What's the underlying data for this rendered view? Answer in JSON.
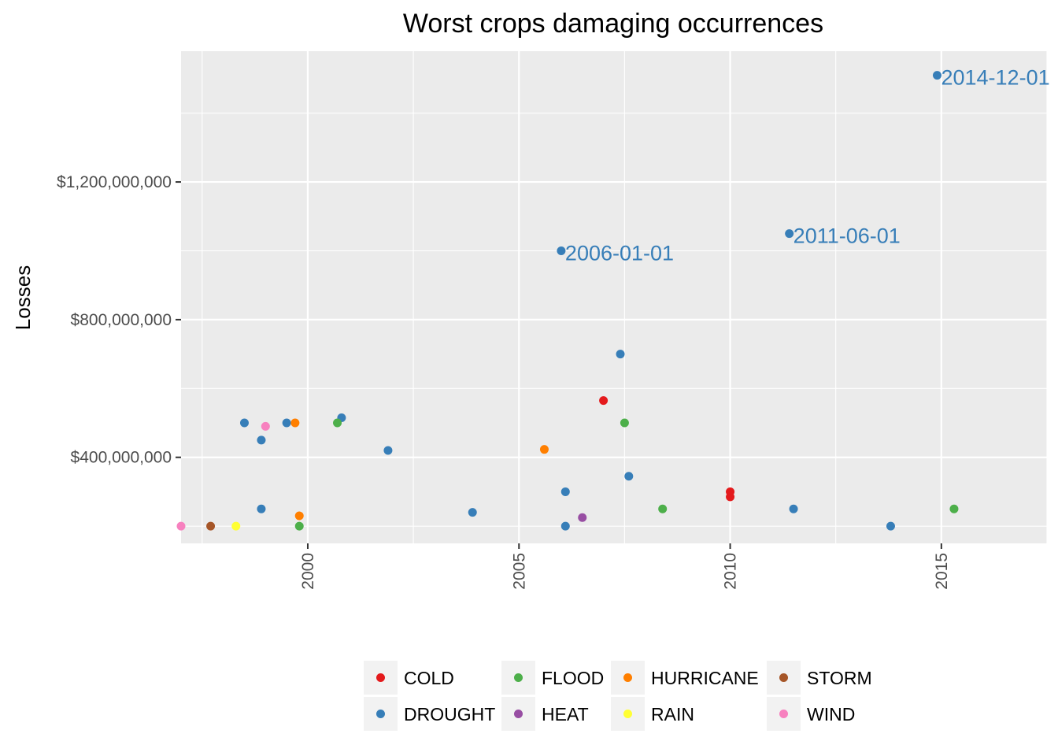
{
  "chart_data": {
    "type": "scatter",
    "title": "Worst crops damaging occurrences",
    "xlabel": "",
    "ylabel": "Losses",
    "xlim": [
      1997.0,
      2017.5
    ],
    "ylim": [
      150000000,
      1580000000
    ],
    "x_ticks": [
      2000,
      2005,
      2010,
      2015
    ],
    "x_tick_labels": [
      "2000",
      "2005",
      "2010",
      "2015"
    ],
    "y_ticks": [
      400000000,
      800000000,
      1200000000
    ],
    "y_tick_labels": [
      "$400,000,000",
      "$800,000,000",
      "$1,200,000,000"
    ],
    "grid": true,
    "legend_position": "bottom",
    "colors": {
      "COLD": "#e41a1c",
      "DROUGHT": "#377eb8",
      "FLOOD": "#4daf4a",
      "HEAT": "#984ea3",
      "HURRICANE": "#ff7f00",
      "RAIN": "#ffff33",
      "STORM": "#a65628",
      "WIND": "#f781bf"
    },
    "legend": [
      [
        "COLD",
        "DROUGHT"
      ],
      [
        "FLOOD",
        "HEAT"
      ],
      [
        "HURRICANE",
        "RAIN"
      ],
      [
        "STORM",
        "WIND"
      ]
    ],
    "series": [
      {
        "name": "COLD",
        "points": [
          {
            "x": 2007.0,
            "y": 565000000
          },
          {
            "x": 2010.0,
            "y": 300000000
          },
          {
            "x": 2010.0,
            "y": 285000000
          }
        ]
      },
      {
        "name": "DROUGHT",
        "points": [
          {
            "x": 1998.5,
            "y": 500000000
          },
          {
            "x": 1998.9,
            "y": 450000000
          },
          {
            "x": 1998.9,
            "y": 250000000
          },
          {
            "x": 1999.5,
            "y": 500000000
          },
          {
            "x": 2000.8,
            "y": 515000000
          },
          {
            "x": 2001.9,
            "y": 420000000
          },
          {
            "x": 2003.9,
            "y": 240000000
          },
          {
            "x": 2006.0,
            "y": 1000000000
          },
          {
            "x": 2006.1,
            "y": 300000000
          },
          {
            "x": 2006.1,
            "y": 200000000
          },
          {
            "x": 2007.4,
            "y": 700000000
          },
          {
            "x": 2007.6,
            "y": 345000000
          },
          {
            "x": 2011.4,
            "y": 1050000000
          },
          {
            "x": 2011.5,
            "y": 250000000
          },
          {
            "x": 2013.8,
            "y": 200000000
          },
          {
            "x": 2014.9,
            "y": 1510000000
          }
        ]
      },
      {
        "name": "FLOOD",
        "points": [
          {
            "x": 1999.8,
            "y": 200000000
          },
          {
            "x": 2000.7,
            "y": 500000000
          },
          {
            "x": 2007.5,
            "y": 500000000
          },
          {
            "x": 2008.4,
            "y": 250000000
          },
          {
            "x": 2015.3,
            "y": 250000000
          }
        ]
      },
      {
        "name": "HEAT",
        "points": [
          {
            "x": 2006.5,
            "y": 225000000
          }
        ]
      },
      {
        "name": "HURRICANE",
        "points": [
          {
            "x": 1999.7,
            "y": 500000000
          },
          {
            "x": 1999.8,
            "y": 230000000
          },
          {
            "x": 2005.6,
            "y": 423000000
          }
        ]
      },
      {
        "name": "RAIN",
        "points": [
          {
            "x": 1998.3,
            "y": 200000000
          }
        ]
      },
      {
        "name": "STORM",
        "points": [
          {
            "x": 1997.7,
            "y": 200000000
          }
        ]
      },
      {
        "name": "WIND",
        "points": [
          {
            "x": 1997.0,
            "y": 200000000
          },
          {
            "x": 1999.0,
            "y": 490000000
          }
        ]
      }
    ],
    "annotations": [
      {
        "text": "2006-01-01",
        "x": 2006.0,
        "y": 1000000000,
        "series": "DROUGHT"
      },
      {
        "text": "2011-06-01",
        "x": 2011.4,
        "y": 1050000000,
        "series": "DROUGHT"
      },
      {
        "text": "2014-12-01",
        "x": 2014.9,
        "y": 1510000000,
        "series": "DROUGHT"
      }
    ]
  }
}
